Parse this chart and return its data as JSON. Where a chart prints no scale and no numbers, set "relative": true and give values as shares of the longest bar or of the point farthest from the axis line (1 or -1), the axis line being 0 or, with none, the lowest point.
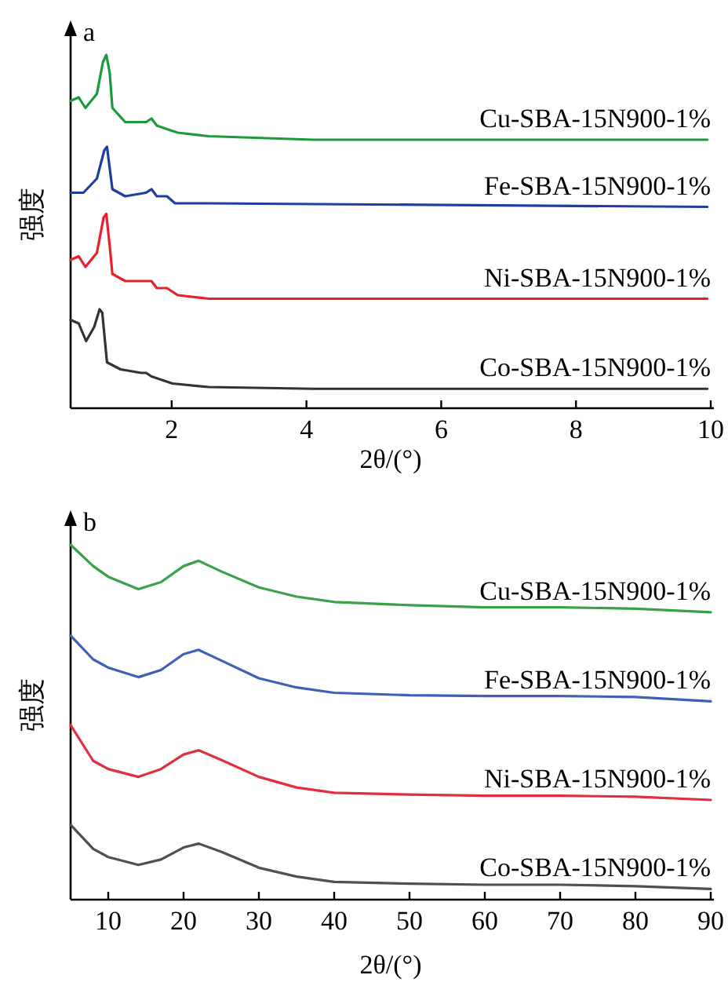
{
  "chart_data": [
    {
      "type": "line",
      "relative": true,
      "title": "a",
      "xlabel": "2θ/(°)",
      "ylabel": "强度",
      "xlim": [
        0.5,
        10
      ],
      "xticks": [
        2,
        4,
        6,
        8,
        10
      ],
      "grid": false,
      "line_style": "solid",
      "series": [
        {
          "name": "Cu-SBA-15N900-1%",
          "color": "#1a9a3a",
          "x": [
            0.5,
            0.62,
            0.72,
            0.89,
            0.98,
            1.03,
            1.08,
            1.12,
            1.31,
            1.62,
            1.7,
            1.78,
            1.93,
            2.09,
            2.55,
            4.1,
            9.95
          ],
          "values": [
            0.87,
            0.88,
            0.85,
            0.89,
            0.98,
            1.0,
            0.95,
            0.85,
            0.81,
            0.81,
            0.82,
            0.8,
            0.79,
            0.78,
            0.77,
            0.76,
            0.76
          ]
        },
        {
          "name": "Fe-SBA-15N900-1%",
          "color": "#1f3fa0",
          "x": [
            0.5,
            0.69,
            0.89,
            1.0,
            1.04,
            1.08,
            1.12,
            1.31,
            1.62,
            1.7,
            1.78,
            1.93,
            2.05,
            2.55,
            9.95
          ],
          "values": [
            0.61,
            0.61,
            0.65,
            0.73,
            0.74,
            0.68,
            0.62,
            0.6,
            0.61,
            0.62,
            0.6,
            0.6,
            0.58,
            0.58,
            0.57
          ]
        },
        {
          "name": "Ni-SBA-15N900-1%",
          "color": "#e8202a",
          "x": [
            0.5,
            0.62,
            0.72,
            0.89,
            0.99,
            1.03,
            1.08,
            1.12,
            1.31,
            1.62,
            1.7,
            1.78,
            1.93,
            2.09,
            2.55,
            9.95
          ],
          "values": [
            0.42,
            0.43,
            0.4,
            0.44,
            0.54,
            0.55,
            0.46,
            0.38,
            0.36,
            0.36,
            0.36,
            0.34,
            0.34,
            0.32,
            0.31,
            0.31
          ]
        },
        {
          "name": "Co-SBA-15N900-1%",
          "color": "#333333",
          "x": [
            0.5,
            0.62,
            0.73,
            0.85,
            0.93,
            0.97,
            1.04,
            1.24,
            1.55,
            1.62,
            1.7,
            2.01,
            2.55,
            4.1,
            9.95
          ],
          "values": [
            0.25,
            0.24,
            0.19,
            0.23,
            0.28,
            0.27,
            0.13,
            0.11,
            0.1,
            0.1,
            0.09,
            0.07,
            0.06,
            0.055,
            0.055
          ]
        }
      ]
    },
    {
      "type": "line",
      "relative": true,
      "title": "b",
      "xlabel": "2θ/(°)",
      "ylabel": "强度",
      "xlim": [
        5,
        90
      ],
      "xticks": [
        10,
        20,
        30,
        40,
        50,
        60,
        70,
        80,
        90
      ],
      "grid": false,
      "line_style": "solid",
      "series": [
        {
          "name": "Cu-SBA-15N900-1%",
          "color": "#3aa04a",
          "x": [
            5,
            8,
            10,
            14,
            17,
            20,
            22,
            25,
            30,
            35,
            40,
            50,
            60,
            70,
            80,
            90
          ],
          "values": [
            1.0,
            0.94,
            0.91,
            0.875,
            0.895,
            0.94,
            0.955,
            0.925,
            0.88,
            0.854,
            0.839,
            0.83,
            0.824,
            0.824,
            0.82,
            0.81
          ]
        },
        {
          "name": "Fe-SBA-15N900-1%",
          "color": "#4060b8",
          "x": [
            5,
            8,
            10,
            14,
            17,
            20,
            22,
            25,
            30,
            35,
            40,
            50,
            60,
            70,
            80,
            90
          ],
          "values": [
            0.744,
            0.677,
            0.654,
            0.627,
            0.647,
            0.692,
            0.704,
            0.674,
            0.624,
            0.598,
            0.583,
            0.576,
            0.574,
            0.574,
            0.571,
            0.559
          ]
        },
        {
          "name": "Ni-SBA-15N900-1%",
          "color": "#e03040",
          "x": [
            5,
            8,
            10,
            14,
            17,
            20,
            22,
            25,
            30,
            35,
            40,
            50,
            60,
            70,
            80,
            90
          ],
          "values": [
            0.492,
            0.391,
            0.368,
            0.346,
            0.368,
            0.409,
            0.421,
            0.394,
            0.346,
            0.316,
            0.301,
            0.296,
            0.293,
            0.293,
            0.29,
            0.281
          ]
        },
        {
          "name": "Co-SBA-15N900-1%",
          "color": "#505050",
          "x": [
            5,
            8,
            10,
            14,
            17,
            20,
            22,
            25,
            30,
            35,
            40,
            50,
            60,
            70,
            80,
            90
          ],
          "values": [
            0.211,
            0.143,
            0.12,
            0.098,
            0.113,
            0.147,
            0.158,
            0.135,
            0.09,
            0.065,
            0.05,
            0.045,
            0.042,
            0.042,
            0.038,
            0.03
          ]
        }
      ]
    }
  ]
}
